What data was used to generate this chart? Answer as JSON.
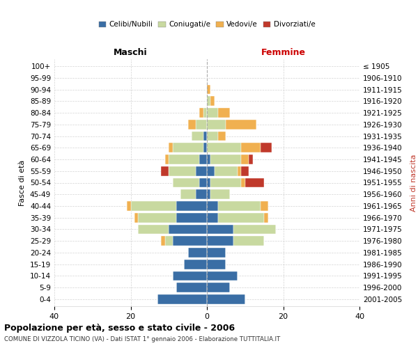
{
  "age_groups": [
    "0-4",
    "5-9",
    "10-14",
    "15-19",
    "20-24",
    "25-29",
    "30-34",
    "35-39",
    "40-44",
    "45-49",
    "50-54",
    "55-59",
    "60-64",
    "65-69",
    "70-74",
    "75-79",
    "80-84",
    "85-89",
    "90-94",
    "95-99",
    "100+"
  ],
  "birth_years": [
    "2001-2005",
    "1996-2000",
    "1991-1995",
    "1986-1990",
    "1981-1985",
    "1976-1980",
    "1971-1975",
    "1966-1970",
    "1961-1965",
    "1956-1960",
    "1951-1955",
    "1946-1950",
    "1941-1945",
    "1936-1940",
    "1931-1935",
    "1926-1930",
    "1921-1925",
    "1916-1920",
    "1911-1915",
    "1906-1910",
    "≤ 1905"
  ],
  "maschi": {
    "celibi": [
      13,
      8,
      9,
      6,
      5,
      9,
      10,
      8,
      8,
      3,
      2,
      3,
      2,
      1,
      1,
      0,
      0,
      0,
      0,
      0,
      0
    ],
    "coniugati": [
      0,
      0,
      0,
      0,
      0,
      2,
      8,
      10,
      12,
      4,
      7,
      7,
      8,
      8,
      3,
      3,
      1,
      0,
      0,
      0,
      0
    ],
    "vedovi": [
      0,
      0,
      0,
      0,
      0,
      1,
      0,
      1,
      1,
      0,
      0,
      0,
      1,
      1,
      0,
      2,
      1,
      0,
      0,
      0,
      0
    ],
    "divorziati": [
      0,
      0,
      0,
      0,
      0,
      0,
      0,
      0,
      0,
      0,
      0,
      2,
      0,
      0,
      0,
      0,
      0,
      0,
      0,
      0,
      0
    ]
  },
  "femmine": {
    "nubili": [
      10,
      6,
      8,
      5,
      5,
      7,
      7,
      3,
      3,
      1,
      1,
      2,
      1,
      0,
      0,
      0,
      0,
      0,
      0,
      0,
      0
    ],
    "coniugate": [
      0,
      0,
      0,
      0,
      0,
      8,
      11,
      12,
      11,
      5,
      8,
      6,
      8,
      9,
      3,
      5,
      3,
      1,
      0,
      0,
      0
    ],
    "vedove": [
      0,
      0,
      0,
      0,
      0,
      0,
      0,
      1,
      2,
      0,
      1,
      1,
      2,
      5,
      2,
      8,
      3,
      1,
      1,
      0,
      0
    ],
    "divorziate": [
      0,
      0,
      0,
      0,
      0,
      0,
      0,
      0,
      0,
      0,
      5,
      2,
      1,
      3,
      0,
      0,
      0,
      0,
      0,
      0,
      0
    ]
  },
  "colors": {
    "celibi": "#3a6ea5",
    "coniugati": "#c8d9a0",
    "vedovi": "#f0b050",
    "divorziati": "#c0392b"
  },
  "xlim": 40,
  "title": "Popolazione per età, sesso e stato civile - 2006",
  "subtitle": "COMUNE DI VIZZOLA TICINO (VA) - Dati ISTAT 1° gennaio 2006 - Elaborazione TUTTITALIA.IT",
  "ylabel_left": "Fasce di età",
  "ylabel_right": "Anni di nascita",
  "xlabel_left": "Maschi",
  "xlabel_right": "Femmine"
}
